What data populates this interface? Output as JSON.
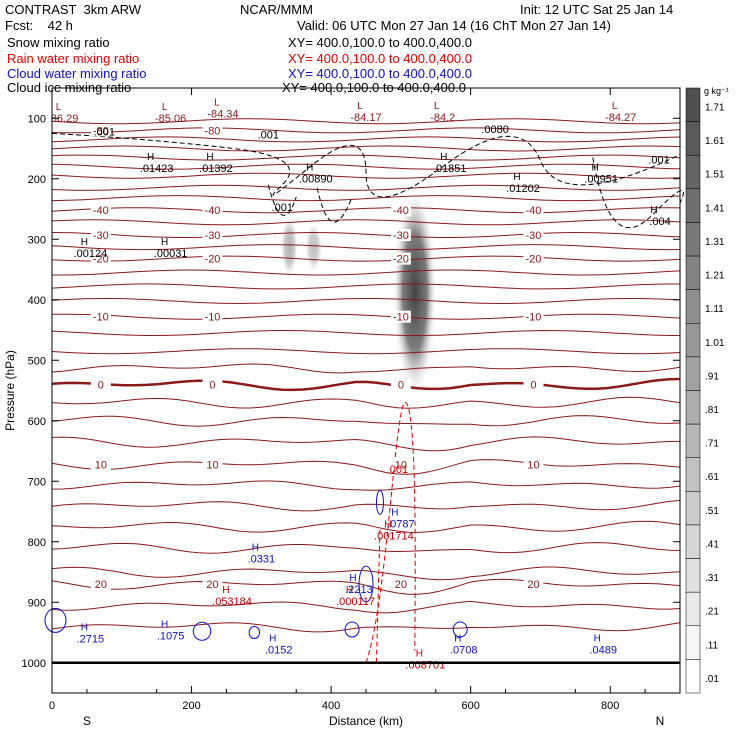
{
  "header": {
    "title": "CONTRAST  3km ARW",
    "fcst": "Fcst:    42 h",
    "center": "NCAR/MMM",
    "init": "Init: 12 UTC Sat 25 Jan 14",
    "valid": "Valid: 06 UTC Mon 27 Jan 14 (16 ChT Mon 27 Jan 14)",
    "legend": [
      {
        "label": "Snow mixing ratio",
        "xy": "XY= 400.0,100.0 to 400.0,400.0",
        "color": "#000000"
      },
      {
        "label": "Rain water mixing ratio",
        "xy": "XY= 400.0,100.0 to 400.0,400.0",
        "color": "#e00000"
      },
      {
        "label": "Cloud water mixing ratio",
        "xy": "XY= 400.0,100.0 to 400.0,400.0",
        "color": "#1010c0"
      },
      {
        "label": "Cloud ice mixing ratio",
        "xy": "XY= 400.0,100.0 to 400.0,400.0",
        "color": "#000000"
      }
    ]
  },
  "chart_data": {
    "type": "heatmap",
    "xlabel": "Distance (km)",
    "ylabel": "Pressure (hPa)",
    "xlim": [
      0,
      900
    ],
    "ylim": [
      1050,
      50
    ],
    "x_ticks": [
      0,
      200,
      400,
      600,
      800
    ],
    "y_ticks": [
      100,
      200,
      300,
      400,
      500,
      600,
      700,
      800,
      900,
      1000
    ],
    "end_labels": {
      "left": "S",
      "right": "N"
    },
    "colorbar": {
      "unit": "g kg⁻¹",
      "levels": [
        "1.71",
        "1.61",
        "1.51",
        "1.41",
        "1.31",
        "1.21",
        "1.11",
        "1.01",
        ".91",
        ".81",
        ".71",
        ".61",
        ".51",
        ".41",
        ".31",
        ".21",
        ".11",
        ".01"
      ]
    },
    "temperature_contours": [
      {
        "label": "-80",
        "p": 120
      },
      {
        "label": "-40",
        "p": 252
      },
      {
        "label": "-30",
        "p": 293
      },
      {
        "label": "-20",
        "p": 332
      },
      {
        "label": "-10",
        "p": 428
      },
      {
        "label": "0",
        "p": 540
      },
      {
        "label": "10",
        "p": 672
      },
      {
        "label": "20",
        "p": 870
      }
    ],
    "snow_regions": [
      {
        "x": 520,
        "p_top": 230,
        "p_bot": 580,
        "intensity": 0.85
      },
      {
        "x": 340,
        "p_top": 265,
        "p_bot": 370,
        "intensity": 0.35
      },
      {
        "x": 375,
        "p_top": 275,
        "p_bot": 360,
        "intensity": 0.3
      }
    ],
    "extrema_labels": [
      {
        "kind": "L",
        "value": "86.29",
        "x": 18,
        "p": 90,
        "color": "#8b1a1a"
      },
      {
        "kind": "L",
        "value": "-85.06",
        "x": 170,
        "p": 90,
        "color": "#8b1a1a"
      },
      {
        "kind": "L",
        "value": "-84.34",
        "x": 245,
        "p": 82,
        "color": "#8b1a1a"
      },
      {
        "kind": "L",
        "value": "-84.17",
        "x": 450,
        "p": 88,
        "color": "#8b1a1a"
      },
      {
        "kind": "L",
        "value": "-84.2",
        "x": 560,
        "p": 88,
        "color": "#8b1a1a"
      },
      {
        "kind": "L",
        "value": "-84.27",
        "x": 815,
        "p": 88,
        "color": "#8b1a1a"
      },
      {
        "kind": "H",
        "value": ".01423",
        "x": 150,
        "p": 172,
        "color": "#000000"
      },
      {
        "kind": "H",
        "value": ".01392",
        "x": 235,
        "p": 172,
        "color": "#000000"
      },
      {
        "kind": "H",
        "value": ".00890",
        "x": 378,
        "p": 190,
        "color": "#000000"
      },
      {
        "kind": "H",
        "value": ".01851",
        "x": 570,
        "p": 172,
        "color": "#000000"
      },
      {
        "kind": "H",
        "value": ".01202",
        "x": 675,
        "p": 205,
        "color": "#000000"
      },
      {
        "kind": "H",
        "value": ".00951",
        "x": 787,
        "p": 190,
        "color": "#000000"
      },
      {
        "kind": "H",
        "value": ".004",
        "x": 915,
        "p": 260,
        "color": "#000000"
      },
      {
        "kind": "H",
        "value": ".00124",
        "x": 55,
        "p": 313,
        "color": "#000000"
      },
      {
        "kind": "H",
        "value": ".00031",
        "x": 170,
        "p": 313,
        "color": "#000000"
      },
      {
        "kind": "H",
        "value": ".0787",
        "x": 500,
        "p": 760,
        "color": "#1010c0"
      },
      {
        "kind": "H",
        "value": ".001714",
        "x": 490,
        "p": 780,
        "color": "#c00000"
      },
      {
        "kind": "H",
        "value": ".0331",
        "x": 300,
        "p": 818,
        "color": "#1010c0"
      },
      {
        "kind": "H",
        "value": ".2213",
        "x": 440,
        "p": 868,
        "color": "#1010c0"
      },
      {
        "kind": "H",
        "value": ".000117",
        "x": 435,
        "p": 888,
        "color": "#c00000"
      },
      {
        "kind": "H",
        "value": ".053184",
        "x": 258,
        "p": 888,
        "color": "#c00000"
      },
      {
        "kind": "H",
        "value": ".2715",
        "x": 55,
        "p": 950,
        "color": "#1010c0"
      },
      {
        "kind": "H",
        "value": ".1075",
        "x": 170,
        "p": 945,
        "color": "#1010c0"
      },
      {
        "kind": "H",
        "value": ".0152",
        "x": 325,
        "p": 968,
        "color": "#1010c0"
      },
      {
        "kind": "H",
        "value": ".0708",
        "x": 590,
        "p": 968,
        "color": "#1010c0"
      },
      {
        "kind": "H",
        "value": ".0489",
        "x": 790,
        "p": 968,
        "color": "#1010c0"
      },
      {
        "kind": "H",
        "value": ".008701",
        "x": 535,
        "p": 993,
        "color": "#c00000"
      }
    ],
    "ice_contour_labels": [
      {
        "label": ".001",
        "x": 75,
        "p": 122
      },
      {
        "label": ".001",
        "x": 310,
        "p": 127
      },
      {
        "label": ".0080",
        "x": 635,
        "p": 118
      },
      {
        "label": ".001",
        "x": 870,
        "p": 168
      },
      {
        "label": ".001",
        "x": 330,
        "p": 247
      }
    ],
    "rain_contour_labels": [
      {
        "label": ".001",
        "x": 495,
        "p": 680
      }
    ]
  }
}
